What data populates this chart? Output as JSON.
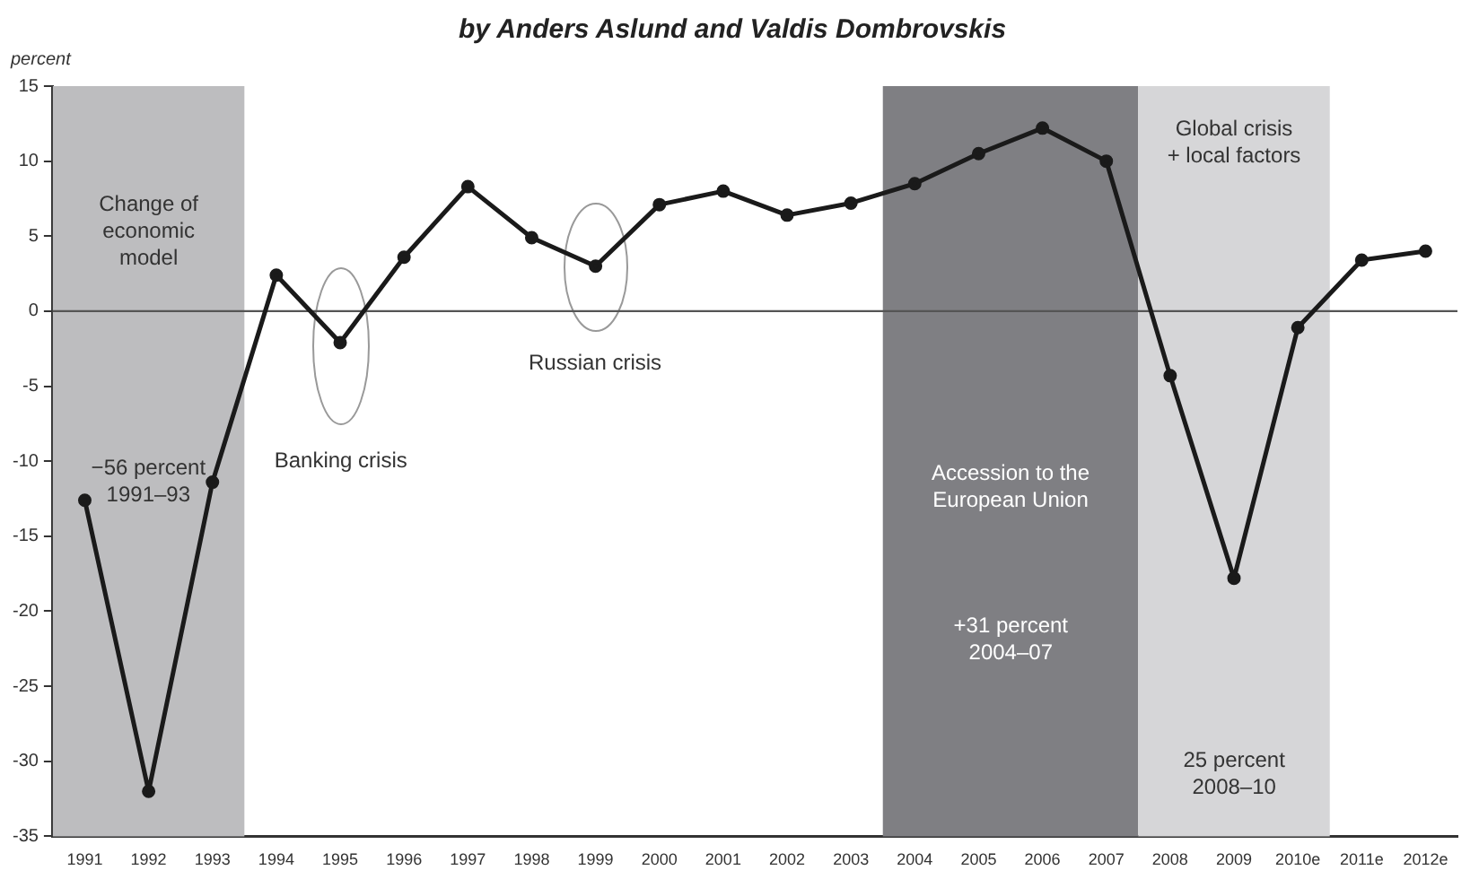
{
  "chart_data": {
    "type": "line",
    "title": "by Anders Aslund and Valdis Dombrovskis",
    "ylabel": "percent",
    "x": [
      1991,
      1992,
      1993,
      1994,
      1995,
      1996,
      1997,
      1998,
      1999,
      2000,
      2001,
      2002,
      2003,
      2004,
      2005,
      2006,
      2007,
      2008,
      2009,
      2010,
      2011,
      2012
    ],
    "series": [
      {
        "color": "#1a1a1a",
        "values": [
          -12.6,
          -32,
          -11.4,
          2.4,
          -2.1,
          3.6,
          8.3,
          4.9,
          3.0,
          7.1,
          8.0,
          6.4,
          7.2,
          8.5,
          10.5,
          12.2,
          10.0,
          -4.3,
          -17.8,
          -1.1,
          3.4,
          4.0
        ]
      }
    ],
    "xlim": [
      1990.5,
      2012.5
    ],
    "xticks": [
      1991,
      1992,
      1993,
      1994,
      1995,
      1996,
      1997,
      1998,
      1999,
      2000,
      2001,
      2002,
      2003,
      2004,
      2005,
      2006,
      2007,
      2008,
      2009,
      {
        "value": 2010,
        "label": "2010e"
      },
      {
        "value": 2011,
        "label": "2011e"
      },
      {
        "value": 2012,
        "label": "2012e"
      }
    ],
    "ylim": [
      -35,
      15
    ],
    "yticks": [
      -35,
      -30,
      -25,
      -20,
      -15,
      -10,
      -5,
      0,
      5,
      10,
      15
    ],
    "grid": false,
    "legend": false,
    "marker": "circle",
    "line_style": "solid",
    "ref_lines": [
      {
        "axis": "y",
        "value": 0,
        "color": "#555555"
      }
    ],
    "bands": [
      {
        "axis": "x",
        "from": 1990.5,
        "to": 1993.5,
        "label": "Change of\neconomic\nmodel",
        "color": "#bdbdbf"
      },
      {
        "axis": "x",
        "from": 2003.5,
        "to": 2007.5,
        "label": "Accession to the\nEuropean Union",
        "color": "#7f7f83"
      },
      {
        "axis": "x",
        "from": 2007.5,
        "to": 2010.5,
        "label": "Global crisis\n+ local factors",
        "color": "#d6d6d8"
      }
    ],
    "annotations": [
      "−56 percent\n1991–93",
      "Banking crisis",
      "Russian crisis",
      "+31 percent\n2004–07",
      "25 percent\n2008–10"
    ]
  }
}
